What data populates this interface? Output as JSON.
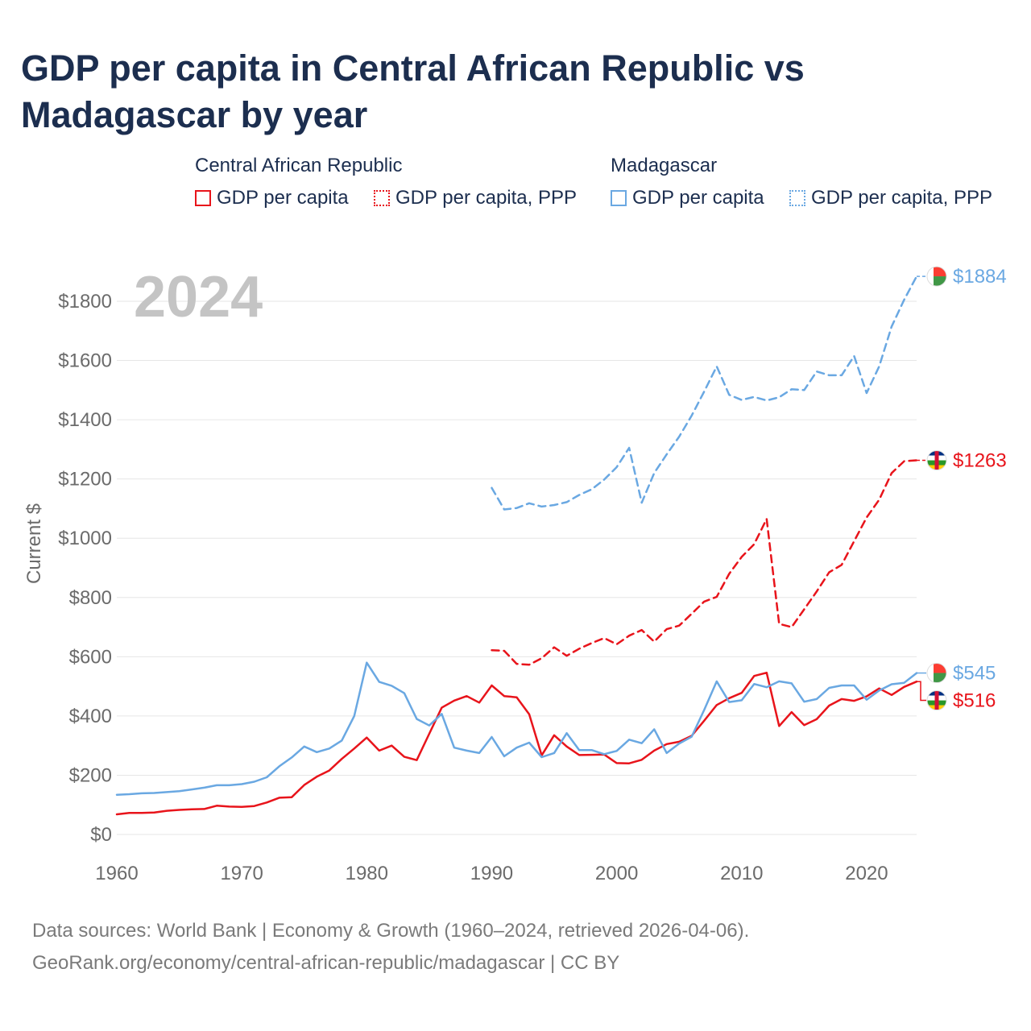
{
  "title": "GDP per capita in Central African Republic vs Madagascar by year",
  "legend": {
    "car_label": "Central African Republic",
    "mdg_label": "Madagascar",
    "gdp_label": "GDP per capita",
    "ppp_label": "GDP per capita, PPP"
  },
  "footer": {
    "line1": "Data sources: World Bank | Economy & Growth (1960–2024, retrieved 2026-04-06).",
    "line2": "GeoRank.org/economy/central-african-republic/madagascar | CC BY"
  },
  "colors": {
    "car": "#e8141b",
    "mdg": "#6aa8e2",
    "title": "#1c2e4f",
    "axis_text": "#6b6b6b",
    "grid": "#e6e6e6",
    "year_watermark": "#c4c4c4"
  },
  "chart_data": {
    "type": "line",
    "title": "GDP per capita in Central African Republic vs Madagascar by year",
    "ylabel": "Current $",
    "xlabel": "",
    "year_label": "2024",
    "xlim": [
      1960,
      2024
    ],
    "ylim": [
      0,
      1900
    ],
    "x_ticks": [
      1960,
      1970,
      1980,
      1990,
      2000,
      2010,
      2020
    ],
    "y_ticks": [
      0,
      200,
      400,
      600,
      800,
      1000,
      1200,
      1400,
      1600,
      1800
    ],
    "y_tick_labels": [
      "$0",
      "$200",
      "$400",
      "$600",
      "$800",
      "$1000",
      "$1200",
      "$1400",
      "$1600",
      "$1800"
    ],
    "x_tick_labels": [
      "1960",
      "1970",
      "1980",
      "1990",
      "2000",
      "2010",
      "2020"
    ],
    "series": [
      {
        "name": "Central African Republic GDP per capita",
        "country": "car",
        "style": "solid",
        "end_label": "$516",
        "x_start": 1960,
        "values": [
          68,
          73,
          73,
          74,
          80,
          83,
          85,
          86,
          97,
          94,
          93,
          96,
          108,
          124,
          126,
          167,
          195,
          216,
          255,
          290,
          327,
          283,
          300,
          262,
          251,
          340,
          428,
          452,
          467,
          445,
          503,
          467,
          463,
          406,
          267,
          335,
          297,
          268,
          269,
          270,
          241,
          240,
          252,
          283,
          305,
          313,
          333,
          384,
          437,
          460,
          478,
          535,
          546,
          366,
          413,
          369,
          389,
          435,
          457,
          451,
          466,
          493,
          471,
          498,
          516
        ]
      },
      {
        "name": "Central African Republic GDP per capita, PPP",
        "country": "car",
        "style": "dashed",
        "end_label": "$1263",
        "x_start": 1990,
        "values": [
          622,
          620,
          576,
          573,
          595,
          632,
          603,
          627,
          646,
          663,
          642,
          671,
          690,
          651,
          693,
          705,
          745,
          786,
          802,
          880,
          937,
          980,
          1065,
          711,
          700,
          760,
          820,
          885,
          910,
          990,
          1070,
          1130,
          1220,
          1260,
          1263
        ]
      },
      {
        "name": "Madagascar GDP per capita",
        "country": "mdg",
        "style": "solid",
        "end_label": "$545",
        "x_start": 1960,
        "values": [
          134,
          136,
          139,
          140,
          143,
          146,
          152,
          158,
          166,
          166,
          170,
          178,
          193,
          230,
          260,
          297,
          278,
          290,
          317,
          400,
          580,
          515,
          502,
          477,
          390,
          368,
          407,
          293,
          283,
          275,
          329,
          264,
          293,
          310,
          261,
          275,
          342,
          285,
          285,
          271,
          282,
          320,
          308,
          355,
          275,
          307,
          330,
          420,
          517,
          447,
          453,
          508,
          497,
          517,
          510,
          448,
          457,
          495,
          503,
          503,
          455,
          486,
          507,
          512,
          545
        ]
      },
      {
        "name": "Madagascar GDP per capita, PPP",
        "country": "mdg",
        "style": "dashed",
        "end_label": "$1884",
        "x_start": 1990,
        "values": [
          1170,
          1097,
          1102,
          1118,
          1107,
          1112,
          1122,
          1146,
          1165,
          1198,
          1240,
          1305,
          1120,
          1220,
          1283,
          1343,
          1414,
          1495,
          1580,
          1484,
          1467,
          1477,
          1465,
          1476,
          1503,
          1500,
          1563,
          1550,
          1550,
          1615,
          1490,
          1580,
          1715,
          1805,
          1884
        ]
      }
    ]
  }
}
